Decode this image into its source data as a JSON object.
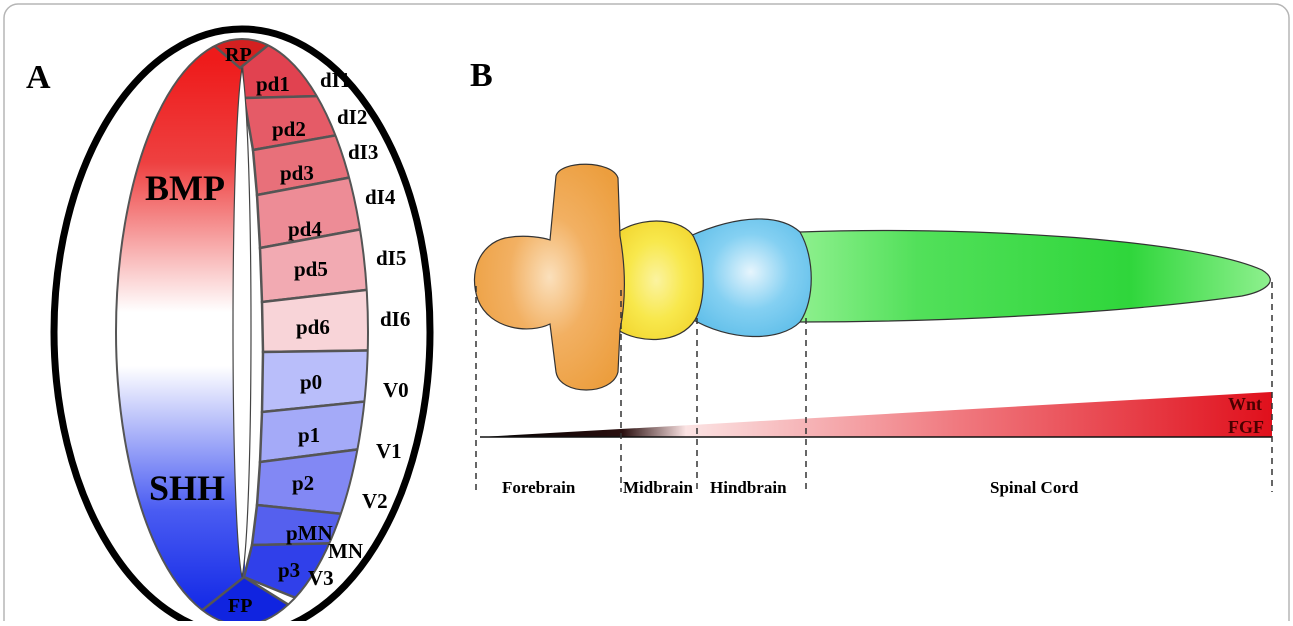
{
  "panel_a": {
    "letter": "A",
    "gradient_labels": {
      "top": "BMP",
      "bottom": "SHH"
    },
    "roof_plate": "RP",
    "floor_plate": "FP",
    "domains": [
      "pd1",
      "pd2",
      "pd3",
      "pd4",
      "pd5",
      "pd6",
      "p0",
      "p1",
      "p2",
      "pMN",
      "p3"
    ],
    "neurons": [
      "dI1",
      "dI2",
      "dI3",
      "dI4",
      "dI5",
      "dI6",
      "V0",
      "V1",
      "V2",
      "MN",
      "V3"
    ]
  },
  "panel_b": {
    "letter": "B",
    "regions": [
      "Forebrain",
      "Midbrain",
      "Hindbrain",
      "Spinal Cord"
    ],
    "gradient_label_line1": "Wnt",
    "gradient_label_line2": "FGF"
  },
  "colors": {
    "bmp_red": "#ee1b1b",
    "shh_blue": "#1530e6",
    "forebrain": "#f0a848",
    "midbrain": "#f7ea4a",
    "hindbrain": "#6ec6ee",
    "spinal_cord": "#3ee04a",
    "frame_border": "#b5b5b5"
  }
}
